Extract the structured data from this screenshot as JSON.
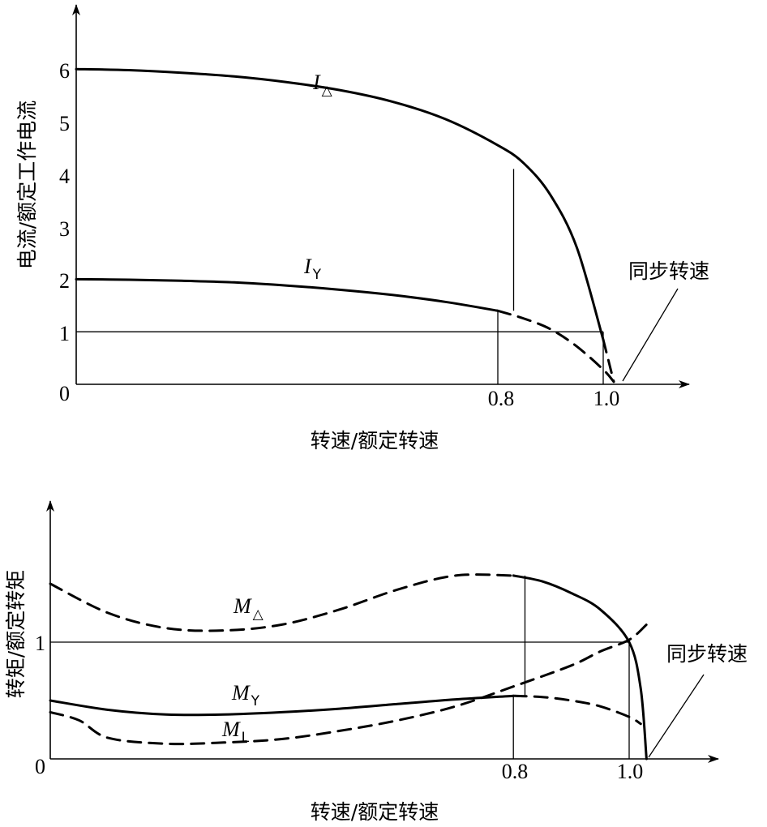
{
  "chart_data": [
    {
      "type": "line",
      "title": "",
      "xlabel": "转速/额定转速",
      "ylabel": "电流/额定工作电流",
      "xlim": [
        0,
        1.05
      ],
      "ylim": [
        0,
        7
      ],
      "x_ticks": [
        "0.8",
        "1.0"
      ],
      "y_ticks": [
        "0",
        "1",
        "2",
        "3",
        "4",
        "5",
        "6"
      ],
      "grid": false,
      "series": [
        {
          "name": "I△",
          "label_main": "I",
          "label_sub": "△",
          "segments": [
            {
              "style": "solid",
              "x": [
                0,
                0.1,
                0.2,
                0.3,
                0.4,
                0.5,
                0.6,
                0.7,
                0.8,
                0.85,
                0.9,
                0.95,
                1.0
              ],
              "y": [
                6.0,
                5.98,
                5.93,
                5.86,
                5.75,
                5.6,
                5.38,
                5.05,
                4.55,
                4.2,
                3.6,
                2.6,
                0.85
              ]
            },
            {
              "style": "dashed",
              "x": [
                1.0,
                1.01,
                1.02
              ],
              "y": [
                0.85,
                0.45,
                0.05
              ]
            }
          ]
        },
        {
          "name": "IY",
          "label_main": "I",
          "label_sub": "Y",
          "segments": [
            {
              "style": "solid",
              "x": [
                0,
                0.1,
                0.2,
                0.3,
                0.4,
                0.5,
                0.6,
                0.7,
                0.8
              ],
              "y": [
                2.0,
                1.99,
                1.97,
                1.94,
                1.88,
                1.8,
                1.7,
                1.57,
                1.4
              ]
            },
            {
              "style": "dashed",
              "x": [
                0.8,
                0.85,
                0.9,
                0.95,
                1.0,
                1.02
              ],
              "y": [
                1.4,
                1.25,
                1.05,
                0.72,
                0.28,
                0.05
              ]
            }
          ]
        }
      ],
      "reference_lines": [
        {
          "y": 1,
          "x_to": 1.0
        },
        {
          "x": 0.83,
          "y_from": 1.4,
          "y_to": 4.1
        },
        {
          "x": 0.8,
          "y_from": 0,
          "y_to": 1.4
        },
        {
          "x": 1.0,
          "y_from": 0,
          "y_to": 1.0
        }
      ],
      "annotation": {
        "text": "同步转速",
        "x": 1.02,
        "y": 0
      }
    },
    {
      "type": "line",
      "title": "",
      "xlabel": "转速/额定转速",
      "ylabel": "转矩/额定转矩",
      "xlim": [
        0,
        1.15
      ],
      "ylim": [
        0,
        2.05
      ],
      "x_ticks": [
        "0.8",
        "1.0"
      ],
      "y_ticks": [
        "0",
        "1"
      ],
      "grid": false,
      "series": [
        {
          "name": "M△",
          "label_main": "M",
          "label_sub": "△",
          "segments": [
            {
              "style": "dashed",
              "x": [
                0,
                0.1,
                0.2,
                0.3,
                0.4,
                0.5,
                0.6,
                0.7,
                0.8
              ],
              "y": [
                1.5,
                1.25,
                1.12,
                1.1,
                1.15,
                1.28,
                1.45,
                1.57,
                1.57
              ]
            },
            {
              "style": "solid",
              "x": [
                0.8,
                0.85,
                0.9,
                0.95,
                1.0,
                1.02,
                1.03
              ],
              "y": [
                1.57,
                1.52,
                1.42,
                1.28,
                1.0,
                0.6,
                0.0
              ]
            }
          ]
        },
        {
          "name": "MY",
          "label_main": "M",
          "label_sub": "Y",
          "segments": [
            {
              "style": "solid",
              "x": [
                0,
                0.1,
                0.2,
                0.3,
                0.4,
                0.5,
                0.6,
                0.7,
                0.8
              ],
              "y": [
                0.5,
                0.42,
                0.38,
                0.38,
                0.4,
                0.43,
                0.47,
                0.51,
                0.54
              ]
            },
            {
              "style": "dashed",
              "x": [
                0.8,
                0.85,
                0.9,
                0.95,
                1.0,
                1.02
              ],
              "y": [
                0.54,
                0.53,
                0.5,
                0.45,
                0.36,
                0.3
              ]
            }
          ]
        },
        {
          "name": "ML",
          "label_main": "M",
          "label_sub": "L",
          "segments": [
            {
              "style": "dashed",
              "x": [
                0,
                0.05,
                0.1,
                0.2,
                0.3,
                0.4,
                0.5,
                0.6,
                0.7,
                0.8,
                0.9,
                0.95,
                1.0,
                1.03
              ],
              "y": [
                0.4,
                0.33,
                0.18,
                0.13,
                0.14,
                0.17,
                0.24,
                0.33,
                0.45,
                0.62,
                0.8,
                0.92,
                1.02,
                1.15
              ]
            }
          ]
        }
      ],
      "reference_lines": [
        {
          "y": 1,
          "x_to": 1.0
        },
        {
          "x": 0.82,
          "y_from": 0.54,
          "y_to": 1.57
        },
        {
          "x": 0.8,
          "y_from": 0,
          "y_to": 0.54
        },
        {
          "x": 1.0,
          "y_from": 0,
          "y_to": 1.0
        }
      ],
      "annotation": {
        "text": "同步转速",
        "x": 1.03,
        "y": 0
      }
    }
  ]
}
